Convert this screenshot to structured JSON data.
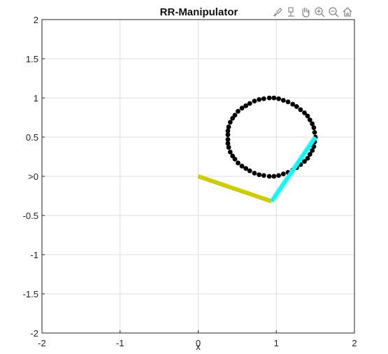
{
  "toolbar": {
    "icons": [
      "brush-icon",
      "data-tips-icon",
      "pan-icon",
      "zoom-in-icon",
      "zoom-out-icon",
      "home-icon"
    ]
  },
  "chart_data": {
    "type": "scatter",
    "title": "RR-Manipulator",
    "xlabel": "x",
    "ylabel": "",
    "xlim": [
      -2,
      2
    ],
    "ylim": [
      -2,
      2
    ],
    "grid": true,
    "xticks": [
      -2,
      -1,
      0,
      1,
      2
    ],
    "xtick_labels": [
      "-2",
      "-1",
      "0",
      "1",
      "2"
    ],
    "yticks": [
      -2,
      -1.5,
      -1,
      -0.5,
      0,
      0.5,
      1,
      1.5,
      2
    ],
    "ytick_labels": [
      "-2",
      "-1.5",
      "-1",
      "-0.5",
      ">0",
      "0.5",
      "1",
      "1.5",
      "2"
    ],
    "series": [
      {
        "kind": "points",
        "color": "#000000",
        "points": [
          [
            1.5,
            0.5
          ],
          [
            1.49,
            0.56
          ],
          [
            1.48,
            0.62
          ],
          [
            1.46,
            0.67
          ],
          [
            1.43,
            0.72
          ],
          [
            1.4,
            0.77
          ],
          [
            1.36,
            0.81
          ],
          [
            1.31,
            0.85
          ],
          [
            1.26,
            0.89
          ],
          [
            1.21,
            0.92
          ],
          [
            1.15,
            0.95
          ],
          [
            1.09,
            0.97
          ],
          [
            1.03,
            0.99
          ],
          [
            0.97,
            1.0
          ],
          [
            0.91,
            1.0
          ],
          [
            0.84,
            0.99
          ],
          [
            0.78,
            0.98
          ],
          [
            0.72,
            0.96
          ],
          [
            0.66,
            0.93
          ],
          [
            0.61,
            0.9
          ],
          [
            0.56,
            0.87
          ],
          [
            0.51,
            0.83
          ],
          [
            0.47,
            0.78
          ],
          [
            0.44,
            0.74
          ],
          [
            0.41,
            0.69
          ],
          [
            0.39,
            0.63
          ],
          [
            0.38,
            0.58
          ],
          [
            0.38,
            0.53
          ],
          [
            0.38,
            0.47
          ],
          [
            0.38,
            0.42
          ],
          [
            0.39,
            0.37
          ],
          [
            0.41,
            0.31
          ],
          [
            0.44,
            0.26
          ],
          [
            0.47,
            0.22
          ],
          [
            0.51,
            0.17
          ],
          [
            0.56,
            0.13
          ],
          [
            0.61,
            0.1
          ],
          [
            0.66,
            0.07
          ],
          [
            0.72,
            0.04
          ],
          [
            0.78,
            0.02
          ],
          [
            0.84,
            0.01
          ],
          [
            0.91,
            0.0
          ],
          [
            0.97,
            0.0
          ],
          [
            1.03,
            0.01
          ],
          [
            1.09,
            0.03
          ],
          [
            1.15,
            0.05
          ],
          [
            1.21,
            0.08
          ],
          [
            1.26,
            0.11
          ],
          [
            1.31,
            0.15
          ],
          [
            1.36,
            0.19
          ],
          [
            1.4,
            0.23
          ],
          [
            1.43,
            0.28
          ],
          [
            1.46,
            0.33
          ],
          [
            1.48,
            0.38
          ],
          [
            1.49,
            0.44
          ]
        ]
      },
      {
        "kind": "link",
        "name": "",
        "color": "#cccc00",
        "points": [
          [
            0.0,
            0.0
          ],
          [
            0.94,
            -0.32
          ]
        ]
      },
      {
        "kind": "link",
        "name": "",
        "color": "#00ffff",
        "points": [
          [
            0.94,
            -0.32
          ],
          [
            1.5,
            0.5
          ]
        ]
      }
    ]
  }
}
